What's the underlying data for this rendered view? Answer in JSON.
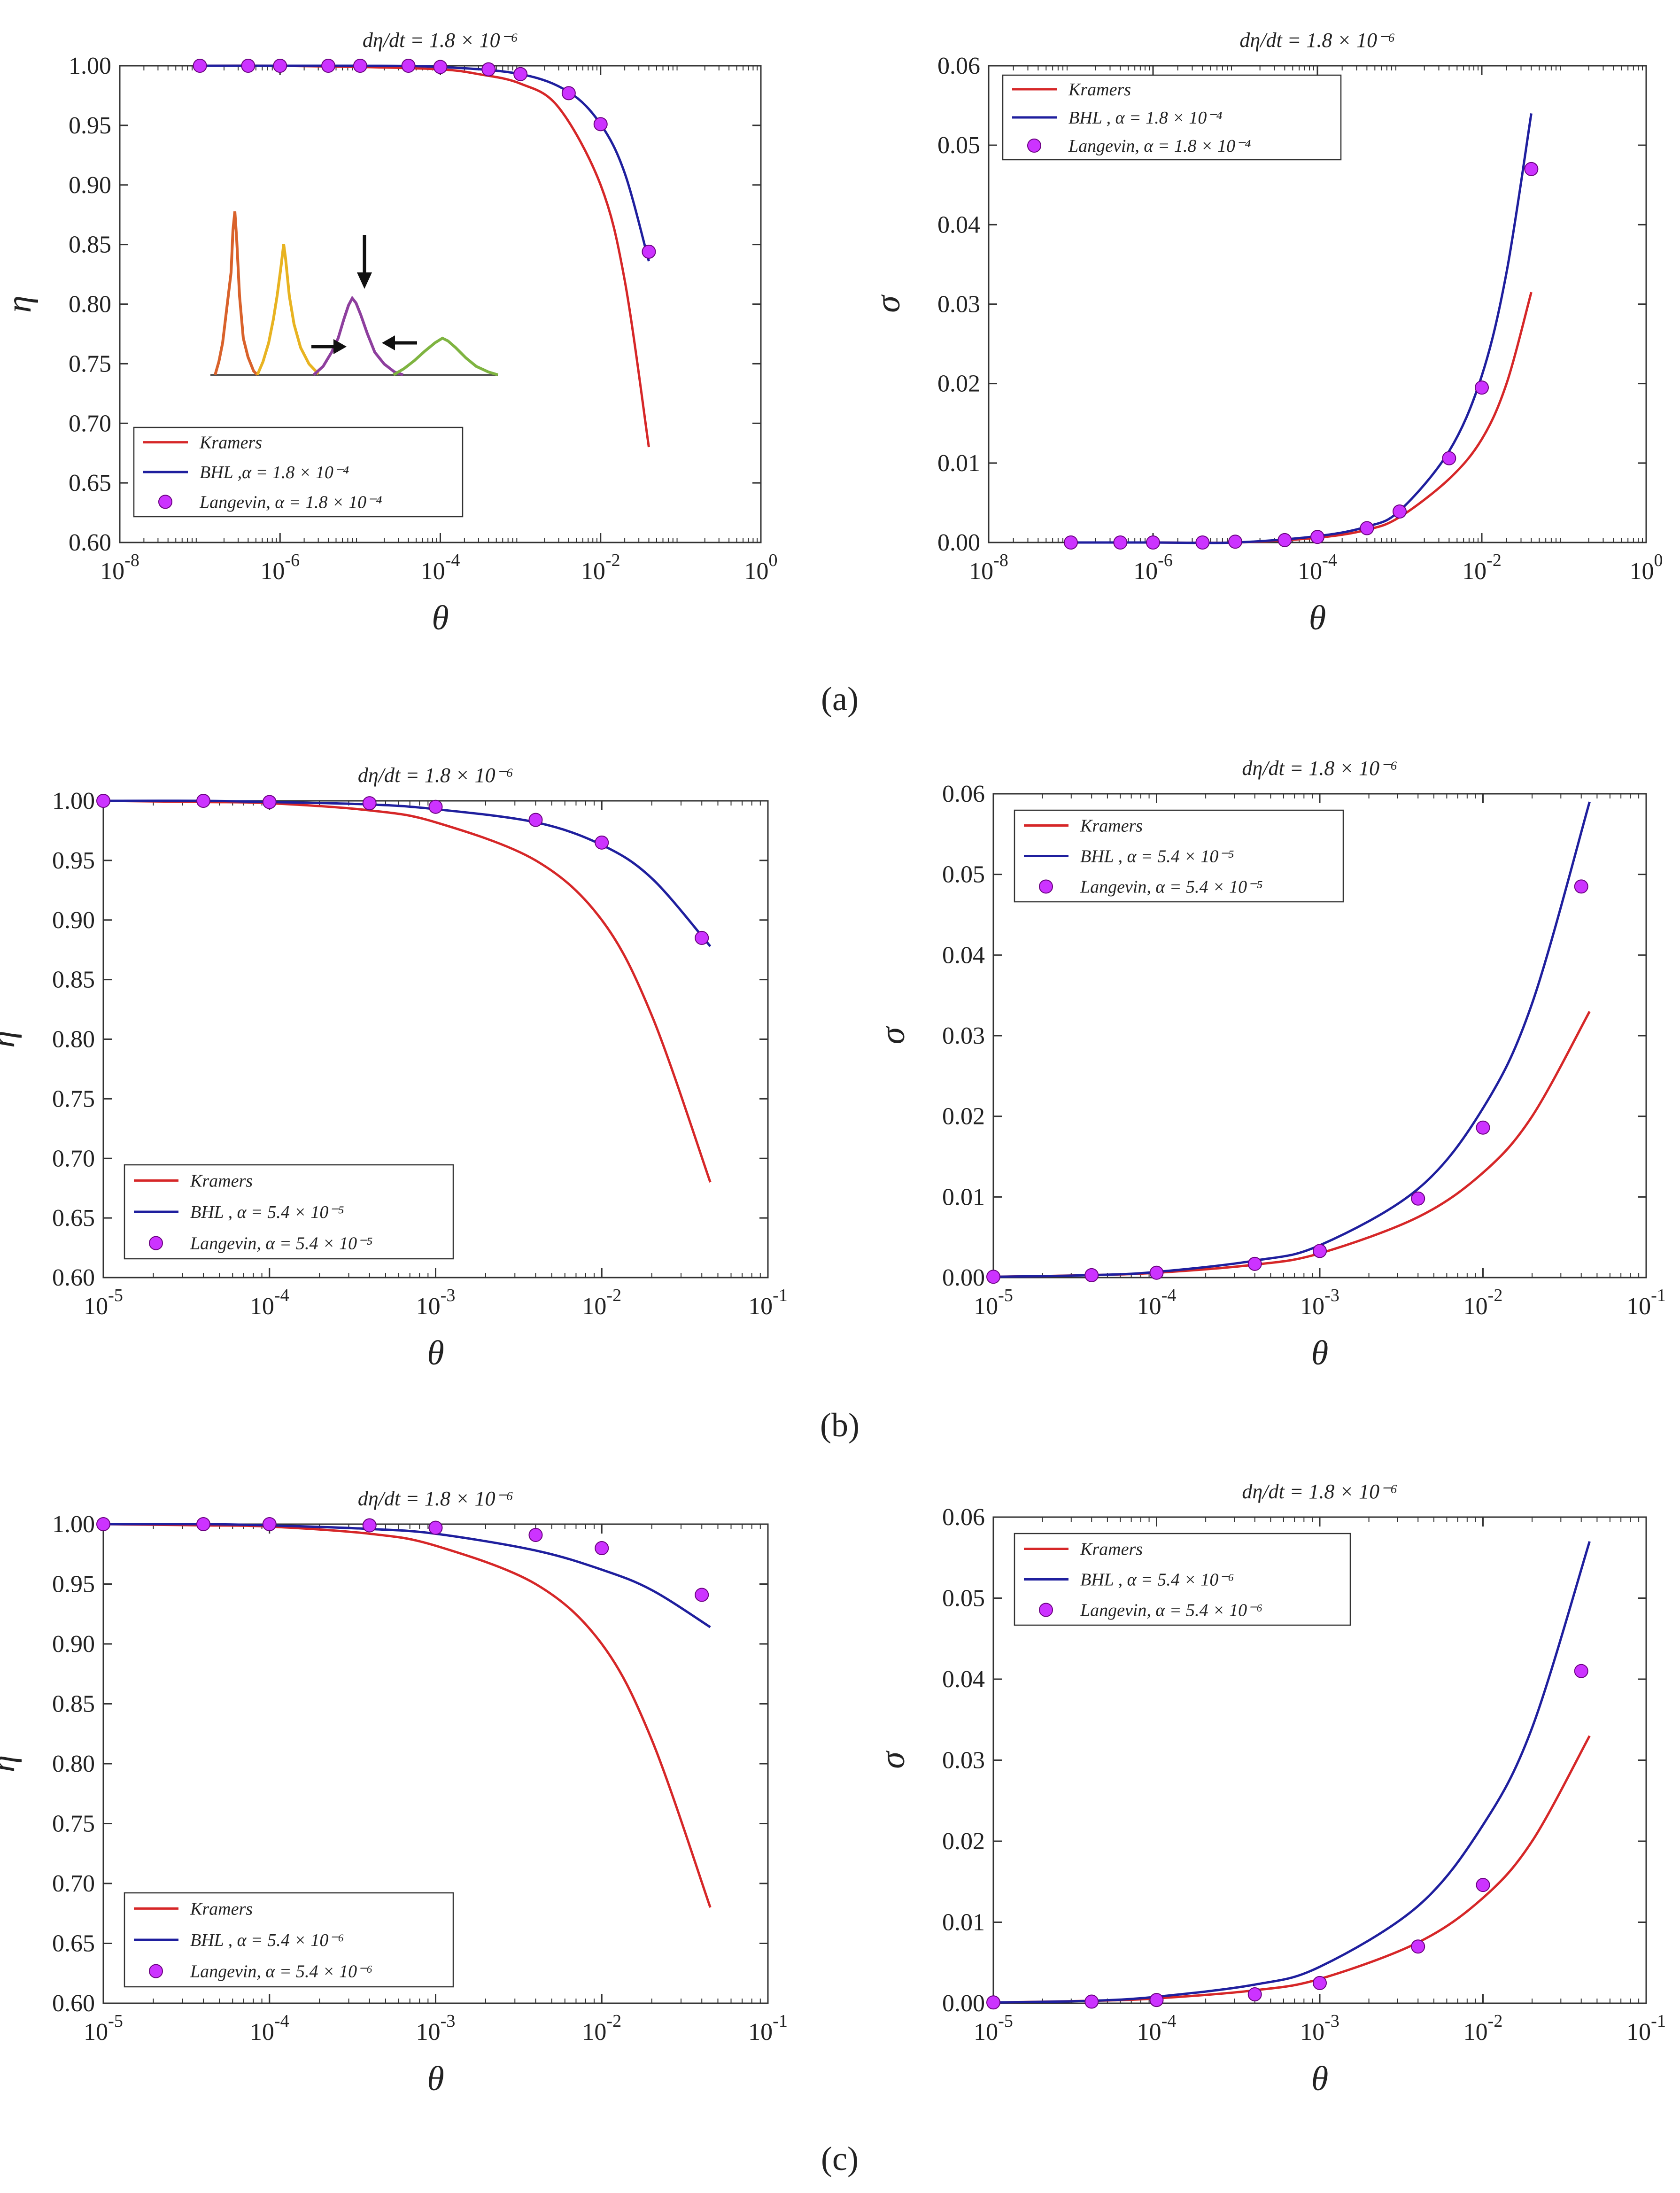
{
  "panel_labels": [
    "(a)",
    "(b)",
    "(c)"
  ],
  "chart_data": [
    {
      "id": "a-eta",
      "type": "line",
      "panel": "a",
      "title": "dη/dt = 1.8 × 10⁻⁶",
      "xlabel": "θ",
      "ylabel": "η",
      "xscale": "log",
      "xlim": [
        1e-08,
        1
      ],
      "ylim": [
        0.6,
        1.0
      ],
      "xticks": [
        1e-08,
        1e-06,
        0.0001,
        0.01,
        1
      ],
      "xtick_labels": [
        {
          "base": "10",
          "exp": "-8"
        },
        {
          "base": "10",
          "exp": "-6"
        },
        {
          "base": "10",
          "exp": "-4"
        },
        {
          "base": "10",
          "exp": "-2"
        },
        {
          "base": "10",
          "exp": "0"
        }
      ],
      "yticks": [
        0.6,
        0.65,
        0.7,
        0.75,
        0.8,
        0.85,
        0.9,
        0.95,
        1.0
      ],
      "ytick_labels": [
        "0.60",
        "0.65",
        "0.70",
        "0.75",
        "0.80",
        "0.85",
        "0.90",
        "0.95",
        "1.00"
      ],
      "legend": {
        "position": "bottom-left",
        "entries": [
          {
            "label": "Kramers"
          },
          {
            "label": "BHL ,α = 1.8 × 10⁻⁴"
          },
          {
            "label": "Langevin, α = 1.8 × 10⁻⁴"
          }
        ]
      },
      "series": [
        {
          "name": "Kramers",
          "style": "line",
          "color": "#d62728",
          "x": [
            1e-07,
            1e-06,
            1e-05,
            0.0001,
            0.0003,
            0.001,
            0.003,
            0.01,
            0.02,
            0.04
          ],
          "y": [
            1.0,
            1.0,
            0.999,
            0.997,
            0.993,
            0.985,
            0.965,
            0.9,
            0.82,
            0.68
          ]
        },
        {
          "name": "BHL",
          "style": "line",
          "color": "#1f1f9e",
          "x": [
            1e-07,
            1e-06,
            1e-05,
            0.0001,
            0.001,
            0.004,
            0.01,
            0.02,
            0.04
          ],
          "y": [
            1.0,
            1.0,
            1.0,
            0.999,
            0.993,
            0.978,
            0.951,
            0.91,
            0.836
          ]
        },
        {
          "name": "Langevin",
          "style": "marker",
          "color": "#cc33ff",
          "x": [
            1e-07,
            4e-07,
            1e-06,
            4e-06,
            1e-05,
            4e-05,
            0.0001,
            0.0004,
            0.001,
            0.004,
            0.01,
            0.04
          ],
          "y": [
            1.0,
            1.0,
            1.0,
            1.0,
            1.0,
            1.0,
            0.999,
            0.997,
            0.993,
            0.977,
            0.951,
            0.844
          ]
        }
      ]
    },
    {
      "id": "a-sigma",
      "type": "line",
      "panel": "a",
      "title": "dη/dt = 1.8 × 10⁻⁶",
      "xlabel": "θ",
      "ylabel": "σ",
      "xscale": "log",
      "xlim": [
        1e-08,
        1
      ],
      "ylim": [
        0,
        0.06
      ],
      "xticks": [
        1e-08,
        1e-06,
        0.0001,
        0.01,
        1
      ],
      "xtick_labels": [
        {
          "base": "10",
          "exp": "-8"
        },
        {
          "base": "10",
          "exp": "-6"
        },
        {
          "base": "10",
          "exp": "-4"
        },
        {
          "base": "10",
          "exp": "-2"
        },
        {
          "base": "10",
          "exp": "0"
        }
      ],
      "yticks": [
        0,
        0.01,
        0.02,
        0.03,
        0.04,
        0.05,
        0.06
      ],
      "ytick_labels": [
        "0.00",
        "0.01",
        "0.02",
        "0.03",
        "0.04",
        "0.05",
        "0.06"
      ],
      "legend": {
        "position": "top-left",
        "entries": [
          {
            "label": "Kramers"
          },
          {
            "label": "BHL , α = 1.8 × 10⁻⁴"
          },
          {
            "label": "Langevin, α = 1.8 × 10⁻⁴"
          }
        ]
      },
      "series": [
        {
          "name": "Kramers",
          "style": "line",
          "color": "#d62728",
          "x": [
            1e-07,
            1e-06,
            1e-05,
            0.0001,
            0.0004,
            0.001,
            0.004,
            0.01,
            0.02,
            0.04
          ],
          "y": [
            0,
            0,
            0,
            0.0006,
            0.0016,
            0.0032,
            0.008,
            0.013,
            0.02,
            0.0315
          ]
        },
        {
          "name": "BHL",
          "style": "line",
          "color": "#1f1f9e",
          "x": [
            1e-07,
            1e-06,
            1e-05,
            0.0001,
            0.0004,
            0.001,
            0.004,
            0.01,
            0.02,
            0.04
          ],
          "y": [
            0,
            0,
            0,
            0.0008,
            0.002,
            0.004,
            0.0115,
            0.021,
            0.034,
            0.054
          ]
        },
        {
          "name": "Langevin",
          "style": "marker",
          "color": "#cc33ff",
          "x": [
            1e-07,
            4e-07,
            1e-06,
            4e-06,
            1e-05,
            4e-05,
            0.0001,
            0.0004,
            0.001,
            0.004,
            0.01,
            0.04
          ],
          "y": [
            0,
            0,
            0,
            0,
            0.0001,
            0.0003,
            0.0007,
            0.0018,
            0.0039,
            0.0106,
            0.0195,
            0.047
          ]
        }
      ]
    },
    {
      "id": "b-eta",
      "type": "line",
      "panel": "b",
      "title": "dη/dt = 1.8 × 10⁻⁶",
      "xlabel": "θ",
      "ylabel": "η",
      "xscale": "log",
      "xlim": [
        1e-05,
        0.1
      ],
      "ylim": [
        0.6,
        1.0
      ],
      "xticks": [
        1e-05,
        0.0001,
        0.001,
        0.01,
        0.1
      ],
      "xtick_labels": [
        {
          "base": "10",
          "exp": "-5"
        },
        {
          "base": "10",
          "exp": "-4"
        },
        {
          "base": "10",
          "exp": "-3"
        },
        {
          "base": "10",
          "exp": "-2"
        },
        {
          "base": "10",
          "exp": "-1"
        }
      ],
      "yticks": [
        0.6,
        0.65,
        0.7,
        0.75,
        0.8,
        0.85,
        0.9,
        0.95,
        1.0
      ],
      "ytick_labels": [
        "0.60",
        "0.65",
        "0.70",
        "0.75",
        "0.80",
        "0.85",
        "0.90",
        "0.95",
        "1.00"
      ],
      "legend": {
        "position": "bottom-left",
        "entries": [
          {
            "label": "Kramers"
          },
          {
            "label": "BHL        , α = 5.4 × 10⁻⁵"
          },
          {
            "label": "Langevin, α = 5.4 × 10⁻⁵"
          }
        ]
      },
      "series": [
        {
          "name": "Kramers",
          "style": "line",
          "color": "#d62728",
          "x": [
            1e-05,
            4e-05,
            0.0001,
            0.0004,
            0.001,
            0.004,
            0.01,
            0.02,
            0.045
          ],
          "y": [
            1.0,
            0.999,
            0.998,
            0.992,
            0.982,
            0.95,
            0.9,
            0.82,
            0.68
          ]
        },
        {
          "name": "BHL",
          "style": "line",
          "color": "#1f1f9e",
          "x": [
            1e-05,
            4e-05,
            0.0001,
            0.0004,
            0.001,
            0.004,
            0.01,
            0.02,
            0.045
          ],
          "y": [
            1.0,
            1.0,
            0.999,
            0.997,
            0.993,
            0.982,
            0.963,
            0.935,
            0.878
          ]
        },
        {
          "name": "Langevin",
          "style": "marker",
          "color": "#cc33ff",
          "x": [
            1e-05,
            4e-05,
            0.0001,
            0.0004,
            0.001,
            0.004,
            0.01,
            0.04
          ],
          "y": [
            1.0,
            1.0,
            0.999,
            0.998,
            0.995,
            0.984,
            0.965,
            0.885
          ]
        }
      ]
    },
    {
      "id": "b-sigma",
      "type": "line",
      "panel": "b",
      "title": "dη/dt = 1.8 × 10⁻⁶",
      "xlabel": "θ",
      "ylabel": "σ",
      "xscale": "log",
      "xlim": [
        1e-05,
        0.1
      ],
      "ylim": [
        0,
        0.06
      ],
      "xticks": [
        1e-05,
        0.0001,
        0.001,
        0.01,
        0.1
      ],
      "xtick_labels": [
        {
          "base": "10",
          "exp": "-5"
        },
        {
          "base": "10",
          "exp": "-4"
        },
        {
          "base": "10",
          "exp": "-3"
        },
        {
          "base": "10",
          "exp": "-2"
        },
        {
          "base": "10",
          "exp": "-1"
        }
      ],
      "yticks": [
        0,
        0.01,
        0.02,
        0.03,
        0.04,
        0.05,
        0.06
      ],
      "ytick_labels": [
        "0.00",
        "0.01",
        "0.02",
        "0.03",
        "0.04",
        "0.05",
        "0.06"
      ],
      "legend": {
        "position": "top-left",
        "entries": [
          {
            "label": "Kramers"
          },
          {
            "label": "BHL        , α = 5.4 × 10⁻⁵"
          },
          {
            "label": "Langevin, α = 5.4 × 10⁻⁵"
          }
        ]
      },
      "series": [
        {
          "name": "Kramers",
          "style": "line",
          "color": "#d62728",
          "x": [
            1e-05,
            4e-05,
            0.0001,
            0.0004,
            0.001,
            0.004,
            0.01,
            0.02,
            0.045
          ],
          "y": [
            0.0001,
            0.0003,
            0.0006,
            0.0016,
            0.003,
            0.0075,
            0.013,
            0.02,
            0.033
          ]
        },
        {
          "name": "BHL",
          "style": "line",
          "color": "#1f1f9e",
          "x": [
            1e-05,
            4e-05,
            0.0001,
            0.0004,
            0.001,
            0.004,
            0.01,
            0.02,
            0.045
          ],
          "y": [
            0.0001,
            0.0003,
            0.0007,
            0.0021,
            0.004,
            0.011,
            0.021,
            0.034,
            0.059
          ]
        },
        {
          "name": "Langevin",
          "style": "marker",
          "color": "#cc33ff",
          "x": [
            1e-05,
            4e-05,
            0.0001,
            0.0004,
            0.001,
            0.004,
            0.01,
            0.04
          ],
          "y": [
            0.0001,
            0.0003,
            0.0006,
            0.0017,
            0.0033,
            0.0098,
            0.0186,
            0.0485
          ]
        }
      ]
    },
    {
      "id": "c-eta",
      "type": "line",
      "panel": "c",
      "title": "dη/dt = 1.8 × 10⁻⁶",
      "xlabel": "θ",
      "ylabel": "η",
      "xscale": "log",
      "xlim": [
        1e-05,
        0.1
      ],
      "ylim": [
        0.6,
        1.0
      ],
      "xticks": [
        1e-05,
        0.0001,
        0.001,
        0.01,
        0.1
      ],
      "xtick_labels": [
        {
          "base": "10",
          "exp": "-5"
        },
        {
          "base": "10",
          "exp": "-4"
        },
        {
          "base": "10",
          "exp": "-3"
        },
        {
          "base": "10",
          "exp": "-2"
        },
        {
          "base": "10",
          "exp": "-1"
        }
      ],
      "yticks": [
        0.6,
        0.65,
        0.7,
        0.75,
        0.8,
        0.85,
        0.9,
        0.95,
        1.0
      ],
      "ytick_labels": [
        "0.60",
        "0.65",
        "0.70",
        "0.75",
        "0.80",
        "0.85",
        "0.90",
        "0.95",
        "1.00"
      ],
      "legend": {
        "position": "bottom-left",
        "entries": [
          {
            "label": "Kramers"
          },
          {
            "label": "BHL        , α = 5.4 × 10⁻⁶"
          },
          {
            "label": "Langevin, α = 5.4 × 10⁻⁶"
          }
        ]
      },
      "series": [
        {
          "name": "Kramers",
          "style": "line",
          "color": "#d62728",
          "x": [
            1e-05,
            4e-05,
            0.0001,
            0.0004,
            0.001,
            0.004,
            0.01,
            0.02,
            0.045
          ],
          "y": [
            1.0,
            0.999,
            0.998,
            0.992,
            0.982,
            0.95,
            0.9,
            0.82,
            0.68
          ]
        },
        {
          "name": "BHL",
          "style": "line",
          "color": "#1f1f9e",
          "x": [
            1e-05,
            4e-05,
            0.0001,
            0.0004,
            0.001,
            0.004,
            0.01,
            0.02,
            0.045
          ],
          "y": [
            1.0,
            1.0,
            0.999,
            0.996,
            0.992,
            0.978,
            0.962,
            0.945,
            0.914
          ]
        },
        {
          "name": "Langevin",
          "style": "marker",
          "color": "#cc33ff",
          "x": [
            1e-05,
            4e-05,
            0.0001,
            0.0004,
            0.001,
            0.004,
            0.01,
            0.04
          ],
          "y": [
            1.0,
            1.0,
            1.0,
            0.999,
            0.997,
            0.991,
            0.98,
            0.941
          ]
        }
      ]
    },
    {
      "id": "c-sigma",
      "type": "line",
      "panel": "c",
      "title": "dη/dt = 1.8 × 10⁻⁶",
      "xlabel": "θ",
      "ylabel": "σ",
      "xscale": "log",
      "xlim": [
        1e-05,
        0.1
      ],
      "ylim": [
        0,
        0.06
      ],
      "xticks": [
        1e-05,
        0.0001,
        0.001,
        0.01,
        0.1
      ],
      "xtick_labels": [
        {
          "base": "10",
          "exp": "-5"
        },
        {
          "base": "10",
          "exp": "-4"
        },
        {
          "base": "10",
          "exp": "-3"
        },
        {
          "base": "10",
          "exp": "-2"
        },
        {
          "base": "10",
          "exp": "-1"
        }
      ],
      "yticks": [
        0,
        0.01,
        0.02,
        0.03,
        0.04,
        0.05,
        0.06
      ],
      "ytick_labels": [
        "0.00",
        "0.01",
        "0.02",
        "0.03",
        "0.04",
        "0.05",
        "0.06"
      ],
      "legend": {
        "position": "top-left",
        "entries": [
          {
            "label": "Kramers"
          },
          {
            "label": "BHL        , α = 5.4 × 10⁻⁶"
          },
          {
            "label": "Langevin, α = 5.4 × 10⁻⁶"
          }
        ]
      },
      "series": [
        {
          "name": "Kramers",
          "style": "line",
          "color": "#d62728",
          "x": [
            1e-05,
            4e-05,
            0.0001,
            0.0004,
            0.001,
            0.004,
            0.01,
            0.02,
            0.045
          ],
          "y": [
            0.0001,
            0.0003,
            0.0006,
            0.0016,
            0.003,
            0.0075,
            0.013,
            0.02,
            0.033
          ]
        },
        {
          "name": "BHL",
          "style": "line",
          "color": "#1f1f9e",
          "x": [
            1e-05,
            4e-05,
            0.0001,
            0.0004,
            0.001,
            0.004,
            0.01,
            0.02,
            0.045
          ],
          "y": [
            0.0001,
            0.0003,
            0.0008,
            0.0023,
            0.0045,
            0.012,
            0.022,
            0.034,
            0.057
          ]
        },
        {
          "name": "Langevin",
          "style": "marker",
          "color": "#cc33ff",
          "x": [
            1e-05,
            4e-05,
            0.0001,
            0.0004,
            0.001,
            0.004,
            0.01,
            0.04
          ],
          "y": [
            0.0001,
            0.0002,
            0.0004,
            0.0011,
            0.0025,
            0.007,
            0.0146,
            0.041
          ]
        }
      ]
    }
  ]
}
